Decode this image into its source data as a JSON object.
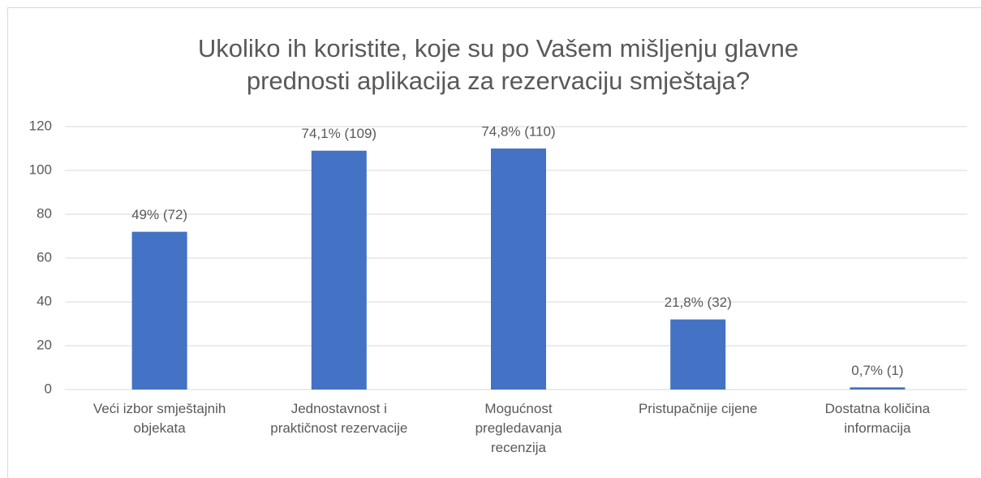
{
  "chart_data": {
    "type": "bar",
    "title": "Ukoliko ih koristite, koje su po Vašem mišljenju glavne prednosti aplikacija za rezervaciju smještaja?",
    "categories": [
      "Veći izbor smještajnih objekata",
      "Jednostavnost i praktičnost rezervacije",
      "Mogućnost pregledavanja recenzija",
      "Pristupačnije cijene",
      "Dostatna količina informacija"
    ],
    "values": [
      72,
      109,
      110,
      32,
      1
    ],
    "value_labels": [
      "49% (72)",
      "74,1% (109)",
      "74,8% (110)",
      "21,8% (32)",
      "0,7% (1)"
    ],
    "color": "#4472c4",
    "ylim": [
      0,
      120
    ],
    "yticks": [
      0,
      20,
      40,
      60,
      80,
      100,
      120
    ],
    "grid": true
  }
}
